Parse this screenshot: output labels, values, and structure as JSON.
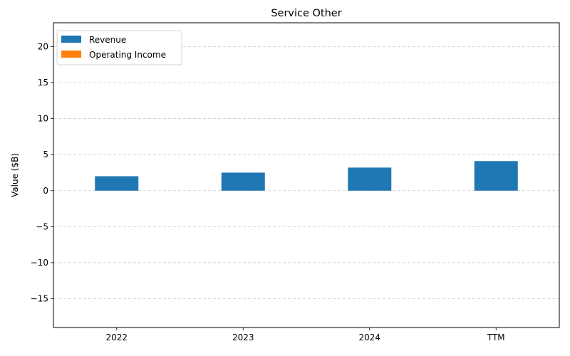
{
  "chart_data": {
    "type": "bar",
    "title": "Service Other",
    "xlabel": "",
    "ylabel": "Value ($B)",
    "categories": [
      "2022",
      "2023",
      "2024",
      "TTM"
    ],
    "series": [
      {
        "name": "Revenue",
        "values": [
          2.0,
          2.5,
          3.2,
          4.1
        ],
        "color": "#1f77b4"
      },
      {
        "name": "Operating Income",
        "values": [
          0,
          0,
          0,
          0
        ],
        "color": "#ff7f0e"
      }
    ],
    "ylim": [
      -19,
      23.3
    ],
    "yticks": [
      -15,
      -10,
      -5,
      0,
      5,
      10,
      15,
      20
    ],
    "ytick_labels": [
      "−15",
      "−10",
      "−5",
      "0",
      "5",
      "10",
      "15",
      "20"
    ],
    "grid": true,
    "legend_position": "top-left"
  }
}
